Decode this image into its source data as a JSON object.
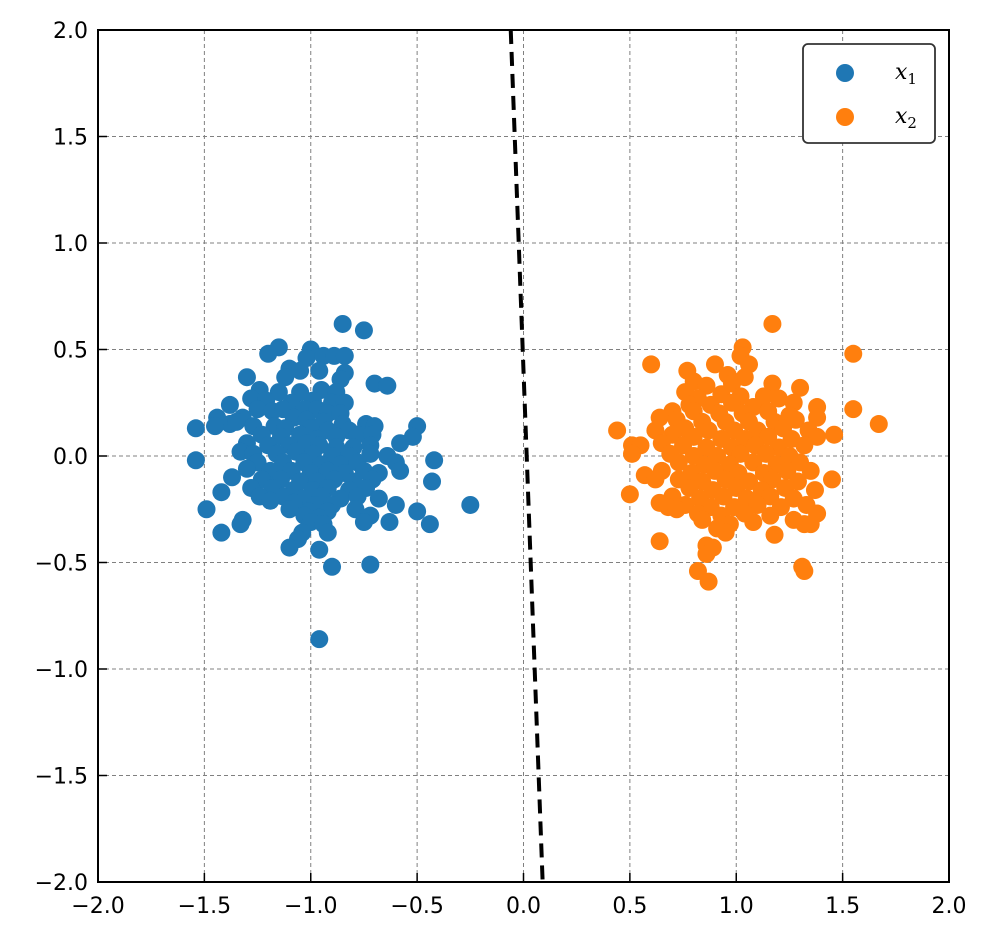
{
  "chart_data": {
    "type": "scatter",
    "title": "",
    "xlabel": "",
    "ylabel": "",
    "xlim": [
      -2.0,
      2.0
    ],
    "ylim": [
      -2.0,
      2.0
    ],
    "x_ticks": [
      -2.0,
      -1.5,
      -1.0,
      -0.5,
      0.0,
      0.5,
      1.0,
      1.5,
      2.0
    ],
    "y_ticks": [
      -2.0,
      -1.5,
      -1.0,
      -0.5,
      0.0,
      0.5,
      1.0,
      1.5,
      2.0
    ],
    "x_tick_labels": [
      "−2.0",
      "−1.5",
      "−1.0",
      "−0.5",
      "0.0",
      "0.5",
      "1.0",
      "1.5",
      "2.0"
    ],
    "y_tick_labels": [
      "−2.0",
      "−1.5",
      "−1.0",
      "−0.5",
      "0.0",
      "0.5",
      "1.0",
      "1.5",
      "2.0"
    ],
    "grid": true,
    "legend_position": "top-right",
    "series": [
      {
        "name": "x1",
        "label_base": "x",
        "label_sub": "1",
        "color": "#1f77b4",
        "points": [
          [
            -0.85,
            0.62
          ],
          [
            -0.75,
            0.59
          ],
          [
            -1.15,
            0.51
          ],
          [
            -1.2,
            0.48
          ],
          [
            -1.0,
            0.5
          ],
          [
            -1.02,
            0.46
          ],
          [
            -0.94,
            0.47
          ],
          [
            -0.89,
            0.47
          ],
          [
            -0.84,
            0.47
          ],
          [
            -1.1,
            0.41
          ],
          [
            -1.05,
            0.4
          ],
          [
            -0.96,
            0.4
          ],
          [
            -0.84,
            0.39
          ],
          [
            -1.3,
            0.37
          ],
          [
            -1.12,
            0.37
          ],
          [
            -0.86,
            0.36
          ],
          [
            -0.7,
            0.34
          ],
          [
            -0.64,
            0.33
          ],
          [
            -1.24,
            0.31
          ],
          [
            -1.15,
            0.3
          ],
          [
            -1.05,
            0.3
          ],
          [
            -0.95,
            0.31
          ],
          [
            -0.88,
            0.3
          ],
          [
            -1.28,
            0.27
          ],
          [
            -1.21,
            0.26
          ],
          [
            -1.09,
            0.25
          ],
          [
            -0.99,
            0.26
          ],
          [
            -0.9,
            0.25
          ],
          [
            -0.84,
            0.25
          ],
          [
            -1.38,
            0.24
          ],
          [
            -1.25,
            0.22
          ],
          [
            -1.18,
            0.21
          ],
          [
            -1.13,
            0.22
          ],
          [
            -1.03,
            0.22
          ],
          [
            -0.97,
            0.22
          ],
          [
            -0.92,
            0.2
          ],
          [
            -0.86,
            0.2
          ],
          [
            -1.44,
            0.18
          ],
          [
            -1.32,
            0.18
          ],
          [
            -1.08,
            0.18
          ],
          [
            -1.02,
            0.17
          ],
          [
            -0.94,
            0.16
          ],
          [
            -0.85,
            0.15
          ],
          [
            -1.38,
            0.15
          ],
          [
            -1.35,
            0.16
          ],
          [
            -1.27,
            0.14
          ],
          [
            -1.17,
            0.14
          ],
          [
            -1.12,
            0.13
          ],
          [
            -1.0,
            0.13
          ],
          [
            -0.92,
            0.12
          ],
          [
            -0.82,
            0.12
          ],
          [
            -0.74,
            0.15
          ],
          [
            -0.7,
            0.14
          ],
          [
            -0.5,
            0.14
          ],
          [
            -1.54,
            0.13
          ],
          [
            -1.45,
            0.14
          ],
          [
            -1.23,
            0.1
          ],
          [
            -1.14,
            0.09
          ],
          [
            -1.05,
            0.1
          ],
          [
            -0.97,
            0.08
          ],
          [
            -0.88,
            0.09
          ],
          [
            -0.78,
            0.1
          ],
          [
            -0.71,
            0.1
          ],
          [
            -0.52,
            0.09
          ],
          [
            -1.3,
            0.06
          ],
          [
            -1.2,
            0.05
          ],
          [
            -1.1,
            0.05
          ],
          [
            -1.02,
            0.06
          ],
          [
            -0.96,
            0.05
          ],
          [
            -0.88,
            0.04
          ],
          [
            -0.8,
            0.04
          ],
          [
            -0.72,
            0.05
          ],
          [
            -0.58,
            0.06
          ],
          [
            -1.33,
            0.02
          ],
          [
            -1.27,
            0.01
          ],
          [
            -1.16,
            0.01
          ],
          [
            -1.07,
            0.02
          ],
          [
            -0.99,
            0.01
          ],
          [
            -0.9,
            0.0
          ],
          [
            -0.82,
            0.0
          ],
          [
            -0.72,
            0.01
          ],
          [
            -0.64,
            0.0
          ],
          [
            -1.25,
            -0.03
          ],
          [
            -1.13,
            -0.03
          ],
          [
            -1.03,
            -0.03
          ],
          [
            -0.95,
            -0.04
          ],
          [
            -0.86,
            -0.04
          ],
          [
            -0.78,
            -0.03
          ],
          [
            -0.6,
            -0.03
          ],
          [
            -1.54,
            -0.02
          ],
          [
            -0.42,
            -0.02
          ],
          [
            -1.3,
            -0.06
          ],
          [
            -1.19,
            -0.07
          ],
          [
            -1.09,
            -0.07
          ],
          [
            -1.0,
            -0.08
          ],
          [
            -0.92,
            -0.07
          ],
          [
            -0.84,
            -0.08
          ],
          [
            -0.75,
            -0.07
          ],
          [
            -0.68,
            -0.08
          ],
          [
            -0.58,
            -0.07
          ],
          [
            -1.37,
            -0.1
          ],
          [
            -1.23,
            -0.11
          ],
          [
            -1.14,
            -0.11
          ],
          [
            -1.05,
            -0.12
          ],
          [
            -0.97,
            -0.12
          ],
          [
            -0.89,
            -0.11
          ],
          [
            -0.8,
            -0.12
          ],
          [
            -0.71,
            -0.11
          ],
          [
            -0.43,
            -0.12
          ],
          [
            -1.28,
            -0.15
          ],
          [
            -1.18,
            -0.15
          ],
          [
            -1.08,
            -0.16
          ],
          [
            -0.99,
            -0.16
          ],
          [
            -0.92,
            -0.15
          ],
          [
            -0.82,
            -0.16
          ],
          [
            -0.74,
            -0.15
          ],
          [
            -1.42,
            -0.17
          ],
          [
            -1.24,
            -0.19
          ],
          [
            -1.13,
            -0.19
          ],
          [
            -1.04,
            -0.2
          ],
          [
            -0.95,
            -0.19
          ],
          [
            -0.86,
            -0.2
          ],
          [
            -0.78,
            -0.19
          ],
          [
            -0.68,
            -0.2
          ],
          [
            -1.19,
            -0.21
          ],
          [
            -1.08,
            -0.22
          ],
          [
            -0.98,
            -0.23
          ],
          [
            -0.9,
            -0.23
          ],
          [
            -0.6,
            -0.23
          ],
          [
            -0.25,
            -0.23
          ],
          [
            -1.49,
            -0.25
          ],
          [
            -1.1,
            -0.25
          ],
          [
            -1.01,
            -0.26
          ],
          [
            -0.92,
            -0.26
          ],
          [
            -0.79,
            -0.25
          ],
          [
            -0.5,
            -0.26
          ],
          [
            -1.32,
            -0.3
          ],
          [
            -1.03,
            -0.28
          ],
          [
            -0.96,
            -0.29
          ],
          [
            -0.72,
            -0.28
          ],
          [
            -1.33,
            -0.32
          ],
          [
            -1.0,
            -0.31
          ],
          [
            -0.94,
            -0.32
          ],
          [
            -0.75,
            -0.31
          ],
          [
            -0.63,
            -0.31
          ],
          [
            -0.44,
            -0.32
          ],
          [
            -1.42,
            -0.36
          ],
          [
            -1.04,
            -0.36
          ],
          [
            -0.92,
            -0.36
          ],
          [
            -1.06,
            -0.39
          ],
          [
            -1.1,
            -0.43
          ],
          [
            -0.96,
            -0.44
          ],
          [
            -0.72,
            -0.51
          ],
          [
            -0.9,
            -0.52
          ],
          [
            -0.96,
            -0.86
          ]
        ]
      },
      {
        "name": "x2",
        "label_base": "x",
        "label_sub": "2",
        "color": "#ff7f0e",
        "points": [
          [
            1.17,
            0.62
          ],
          [
            1.03,
            0.51
          ],
          [
            1.55,
            0.48
          ],
          [
            1.02,
            0.47
          ],
          [
            0.6,
            0.43
          ],
          [
            0.9,
            0.43
          ],
          [
            1.06,
            0.43
          ],
          [
            0.77,
            0.4
          ],
          [
            0.96,
            0.38
          ],
          [
            1.04,
            0.37
          ],
          [
            0.8,
            0.35
          ],
          [
            0.86,
            0.33
          ],
          [
            0.98,
            0.34
          ],
          [
            1.17,
            0.34
          ],
          [
            1.3,
            0.32
          ],
          [
            0.76,
            0.3
          ],
          [
            0.93,
            0.29
          ],
          [
            1.02,
            0.28
          ],
          [
            1.13,
            0.28
          ],
          [
            0.82,
            0.27
          ],
          [
            1.2,
            0.27
          ],
          [
            1.27,
            0.25
          ],
          [
            0.78,
            0.24
          ],
          [
            0.88,
            0.24
          ],
          [
            0.98,
            0.25
          ],
          [
            1.08,
            0.23
          ],
          [
            1.38,
            0.23
          ],
          [
            1.55,
            0.22
          ],
          [
            0.7,
            0.21
          ],
          [
            0.8,
            0.21
          ],
          [
            0.92,
            0.2
          ],
          [
            1.03,
            0.2
          ],
          [
            1.15,
            0.21
          ],
          [
            1.25,
            0.19
          ],
          [
            0.64,
            0.18
          ],
          [
            0.72,
            0.17
          ],
          [
            0.84,
            0.16
          ],
          [
            0.95,
            0.16
          ],
          [
            1.06,
            0.16
          ],
          [
            1.18,
            0.16
          ],
          [
            1.28,
            0.17
          ],
          [
            1.38,
            0.18
          ],
          [
            1.67,
            0.15
          ],
          [
            0.76,
            0.13
          ],
          [
            0.87,
            0.12
          ],
          [
            0.99,
            0.12
          ],
          [
            1.1,
            0.12
          ],
          [
            1.22,
            0.13
          ],
          [
            1.34,
            0.12
          ],
          [
            0.44,
            0.12
          ],
          [
            0.62,
            0.12
          ],
          [
            0.7,
            0.1
          ],
          [
            0.8,
            0.09
          ],
          [
            0.93,
            0.08
          ],
          [
            1.04,
            0.08
          ],
          [
            1.15,
            0.09
          ],
          [
            1.26,
            0.08
          ],
          [
            1.38,
            0.09
          ],
          [
            1.46,
            0.1
          ],
          [
            0.51,
            0.05
          ],
          [
            0.55,
            0.05
          ],
          [
            0.65,
            0.06
          ],
          [
            0.75,
            0.05
          ],
          [
            0.86,
            0.04
          ],
          [
            0.98,
            0.04
          ],
          [
            1.09,
            0.05
          ],
          [
            1.2,
            0.04
          ],
          [
            1.32,
            0.05
          ],
          [
            0.51,
            0.01
          ],
          [
            0.69,
            0.01
          ],
          [
            0.8,
            0.0
          ],
          [
            0.91,
            0.0
          ],
          [
            1.02,
            0.01
          ],
          [
            1.14,
            0.01
          ],
          [
            1.25,
            0.0
          ],
          [
            0.73,
            -0.03
          ],
          [
            0.85,
            -0.04
          ],
          [
            0.97,
            -0.04
          ],
          [
            1.08,
            -0.03
          ],
          [
            1.19,
            -0.04
          ],
          [
            1.3,
            -0.03
          ],
          [
            0.65,
            -0.07
          ],
          [
            0.79,
            -0.08
          ],
          [
            0.9,
            -0.07
          ],
          [
            1.01,
            -0.08
          ],
          [
            1.13,
            -0.08
          ],
          [
            1.24,
            -0.07
          ],
          [
            1.35,
            -0.07
          ],
          [
            0.57,
            -0.09
          ],
          [
            0.73,
            -0.11
          ],
          [
            0.84,
            -0.12
          ],
          [
            0.95,
            -0.11
          ],
          [
            1.06,
            -0.12
          ],
          [
            1.17,
            -0.11
          ],
          [
            1.29,
            -0.12
          ],
          [
            1.45,
            -0.11
          ],
          [
            0.62,
            -0.11
          ],
          [
            0.78,
            -0.15
          ],
          [
            0.89,
            -0.16
          ],
          [
            1.0,
            -0.15
          ],
          [
            1.12,
            -0.16
          ],
          [
            1.23,
            -0.15
          ],
          [
            1.37,
            -0.16
          ],
          [
            0.5,
            -0.18
          ],
          [
            0.7,
            -0.19
          ],
          [
            0.83,
            -0.2
          ],
          [
            0.94,
            -0.19
          ],
          [
            1.05,
            -0.2
          ],
          [
            1.16,
            -0.19
          ],
          [
            1.27,
            -0.2
          ],
          [
            0.64,
            -0.22
          ],
          [
            0.76,
            -0.23
          ],
          [
            0.88,
            -0.24
          ],
          [
            0.99,
            -0.24
          ],
          [
            1.1,
            -0.23
          ],
          [
            1.21,
            -0.24
          ],
          [
            1.33,
            -0.23
          ],
          [
            0.68,
            -0.24
          ],
          [
            0.72,
            -0.25
          ],
          [
            0.82,
            -0.27
          ],
          [
            0.93,
            -0.28
          ],
          [
            1.04,
            -0.27
          ],
          [
            1.16,
            -0.28
          ],
          [
            1.38,
            -0.27
          ],
          [
            0.84,
            -0.3
          ],
          [
            0.97,
            -0.32
          ],
          [
            1.08,
            -0.31
          ],
          [
            1.27,
            -0.3
          ],
          [
            1.32,
            -0.32
          ],
          [
            1.35,
            -0.32
          ],
          [
            0.91,
            -0.34
          ],
          [
            0.95,
            -0.36
          ],
          [
            1.18,
            -0.37
          ],
          [
            0.64,
            -0.4
          ],
          [
            0.86,
            -0.42
          ],
          [
            0.89,
            -0.43
          ],
          [
            0.86,
            -0.46
          ],
          [
            1.31,
            -0.52
          ],
          [
            0.82,
            -0.54
          ],
          [
            1.32,
            -0.54
          ],
          [
            0.87,
            -0.59
          ]
        ]
      }
    ],
    "decision_boundary": {
      "style": "dashed",
      "color": "#000000",
      "points": [
        [
          -0.06,
          2.0
        ],
        [
          0.09,
          -2.0
        ]
      ]
    }
  }
}
